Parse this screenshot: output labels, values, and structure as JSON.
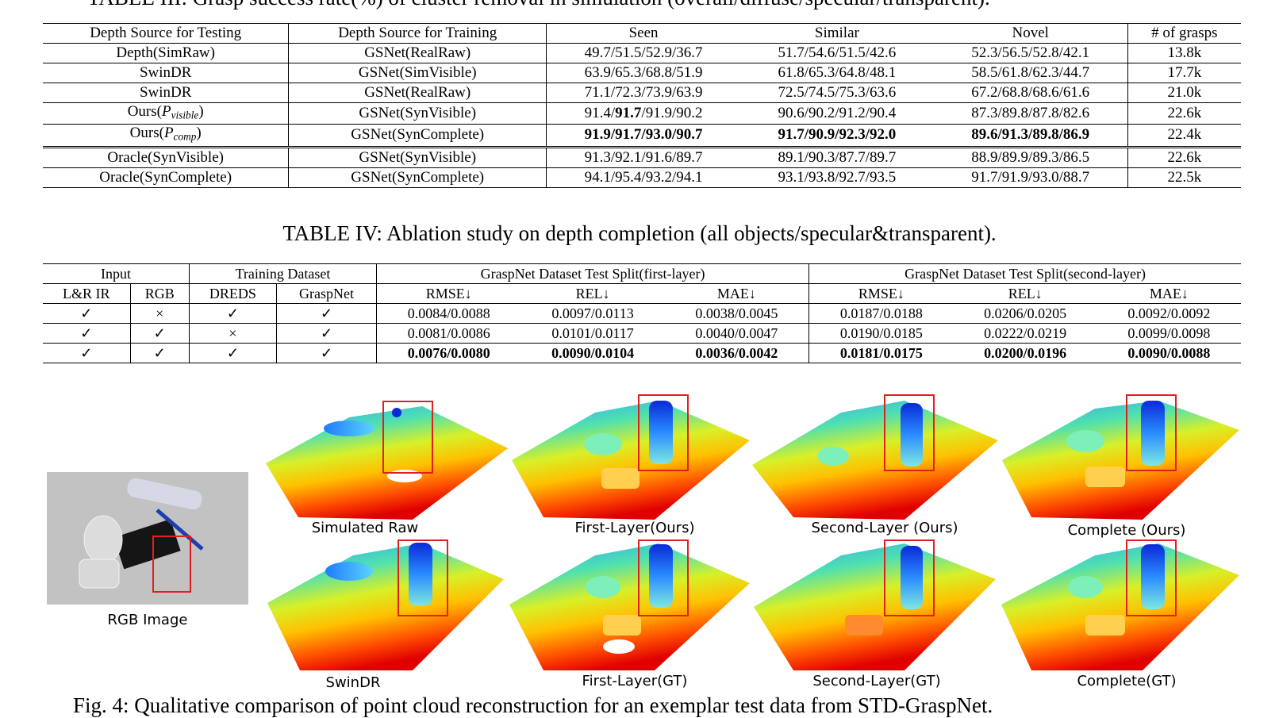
{
  "top_caption_partial": "TABLE III: Grasp success rate(%) of cluster removal in simulation (overall/diffuse/specular/transparent).",
  "table3": {
    "headers": [
      "Depth Source for Testing",
      "Depth Source for Training",
      "Seen",
      "Similar",
      "Novel",
      "# of grasps"
    ],
    "rows": [
      {
        "test": "Depth(SimRaw)",
        "train": "GSNet(RealRaw)",
        "seen": "49.7/51.5/52.9/36.7",
        "similar": "51.7/54.6/51.5/42.6",
        "novel": "52.3/56.5/52.8/42.1",
        "grasps": "13.8k"
      },
      {
        "test": "SwinDR",
        "train": "GSNet(SimVisible)",
        "seen": "63.9/65.3/68.8/51.9",
        "similar": "61.8/65.3/64.8/48.1",
        "novel": "58.5/61.8/62.3/44.7",
        "grasps": "17.7k"
      },
      {
        "test": "SwinDR",
        "train": "GSNet(RealRaw)",
        "seen": "71.1/72.3/73.9/63.9",
        "similar": "72.5/74.5/75.3/63.6",
        "novel": "67.2/68.8/68.6/61.6",
        "grasps": "21.0k"
      }
    ],
    "ours_visible": {
      "test_prefix": "Ours(",
      "test_var": "P",
      "test_sub": "visible",
      "test_suffix": ")",
      "train": "GSNet(SynVisible)",
      "seen_a": "91.4/",
      "seen_b": "91.7",
      "seen_c": "/91.9/90.2",
      "similar": "90.6/90.2/91.2/90.4",
      "novel": "87.3/89.8/87.8/82.6",
      "grasps": "22.6k"
    },
    "ours_comp": {
      "test_prefix": "Ours(",
      "test_var": "P",
      "test_sub": "comp",
      "test_suffix": ")",
      "train": "GSNet(SynComplete)",
      "seen": "91.9/91.7/93.0/90.7",
      "similar": "91.7/90.9/92.3/92.0",
      "novel": "89.6/91.3/89.8/86.9",
      "grasps": "22.4k"
    },
    "oracle_rows": [
      {
        "test": "Oracle(SynVisible)",
        "train": "GSNet(SynVisible)",
        "seen": "91.3/92.1/91.6/89.7",
        "similar": "89.1/90.3/87.7/89.7",
        "novel": "88.9/89.9/89.3/86.5",
        "grasps": "22.6k"
      },
      {
        "test": "Oracle(SynComplete)",
        "train": "GSNet(SynComplete)",
        "seen": "94.1/95.4/93.2/94.1",
        "similar": "93.1/93.8/92.7/93.5",
        "novel": "91.7/91.9/93.0/88.7",
        "grasps": "22.5k"
      }
    ]
  },
  "table4": {
    "caption": "TABLE IV: Ablation study on depth completion (all objects/specular&transparent).",
    "group_headers": [
      "Input",
      "Training Dataset",
      "GraspNet Dataset Test Split(first-layer)",
      "GraspNet Dataset Test Split(second-layer)"
    ],
    "sub_headers": [
      "L&R IR",
      "RGB",
      "DREDS",
      "GraspNet",
      "RMSE↓",
      "REL↓",
      "MAE↓",
      "RMSE↓",
      "REL↓",
      "MAE↓"
    ],
    "rows": [
      {
        "lr": "✓",
        "rgb": "×",
        "dreds": "✓",
        "graspnet": "✓",
        "rmse1": "0.0084/0.0088",
        "rel1": "0.0097/0.0113",
        "mae1": "0.0038/0.0045",
        "rmse2": "0.0187/0.0188",
        "rel2": "0.0206/0.0205",
        "mae2": "0.0092/0.0092"
      },
      {
        "lr": "✓",
        "rgb": "✓",
        "dreds": "×",
        "graspnet": "✓",
        "rmse1": "0.0081/0.0086",
        "rel1": "0.0101/0.0117",
        "mae1": "0.0040/0.0047",
        "rmse2": "0.0190/0.0185",
        "rel2": "0.0222/0.0219",
        "mae2": "0.0099/0.0098"
      },
      {
        "lr": "✓",
        "rgb": "✓",
        "dreds": "✓",
        "graspnet": "✓",
        "rmse1": "0.0076/0.0080",
        "rel1": "0.0090/0.0104",
        "mae1": "0.0036/0.0042",
        "rmse2": "0.0181/0.0175",
        "rel2": "0.0200/0.0196",
        "mae2": "0.0090/0.0088"
      }
    ]
  },
  "figure": {
    "rgb_label": "RGB Image",
    "top_labels": [
      "Simulated Raw",
      "First-Layer(Ours)",
      "Second-Layer (Ours)",
      "Complete (Ours)"
    ],
    "bottom_labels": [
      "SwinDR",
      "First-Layer(GT)",
      "Second-Layer(GT)",
      "Complete(GT)"
    ],
    "caption": "Fig. 4: Qualitative comparison of point cloud reconstruction for an exemplar test data from STD-GraspNet.",
    "highlight_color": "#e02020"
  }
}
